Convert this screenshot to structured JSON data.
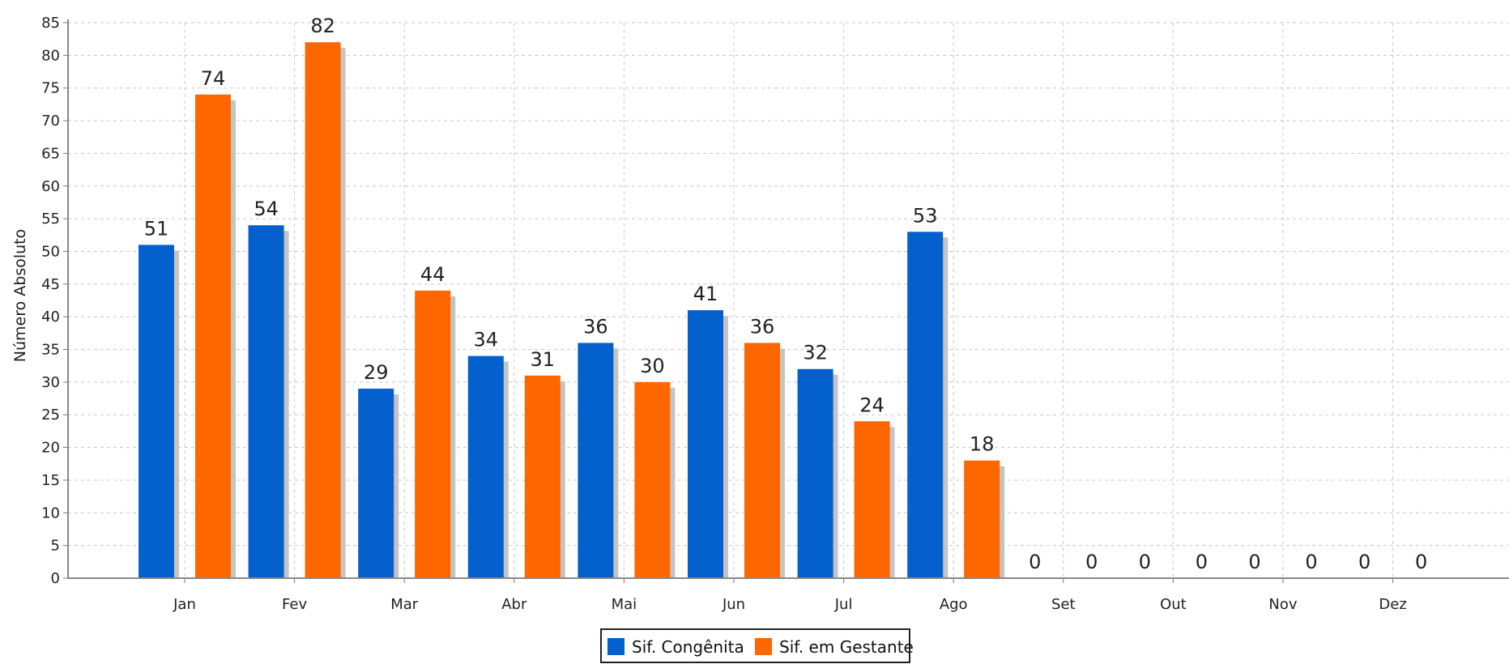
{
  "chart_data": {
    "type": "bar",
    "title": "",
    "xlabel": "",
    "ylabel": "Número Absoluto",
    "ylim": [
      0,
      85
    ],
    "yticks": [
      0,
      5,
      10,
      15,
      20,
      25,
      30,
      35,
      40,
      45,
      50,
      55,
      60,
      65,
      70,
      75,
      80,
      85
    ],
    "grid": true,
    "legend_position": "bottom-center",
    "categories": [
      "Jan",
      "Fev",
      "Mar",
      "Abr",
      "Mai",
      "Jun",
      "Jul",
      "Ago",
      "Set",
      "Out",
      "Nov",
      "Dez"
    ],
    "series": [
      {
        "name": "Sif. Congênita",
        "color": "#0460cc",
        "values": [
          51,
          54,
          29,
          34,
          36,
          41,
          32,
          53,
          0,
          0,
          0,
          0
        ]
      },
      {
        "name": "Sif. em Gestante",
        "color": "#fe6600",
        "values": [
          74,
          82,
          44,
          31,
          30,
          36,
          24,
          18,
          0,
          0,
          0,
          0
        ]
      }
    ]
  }
}
